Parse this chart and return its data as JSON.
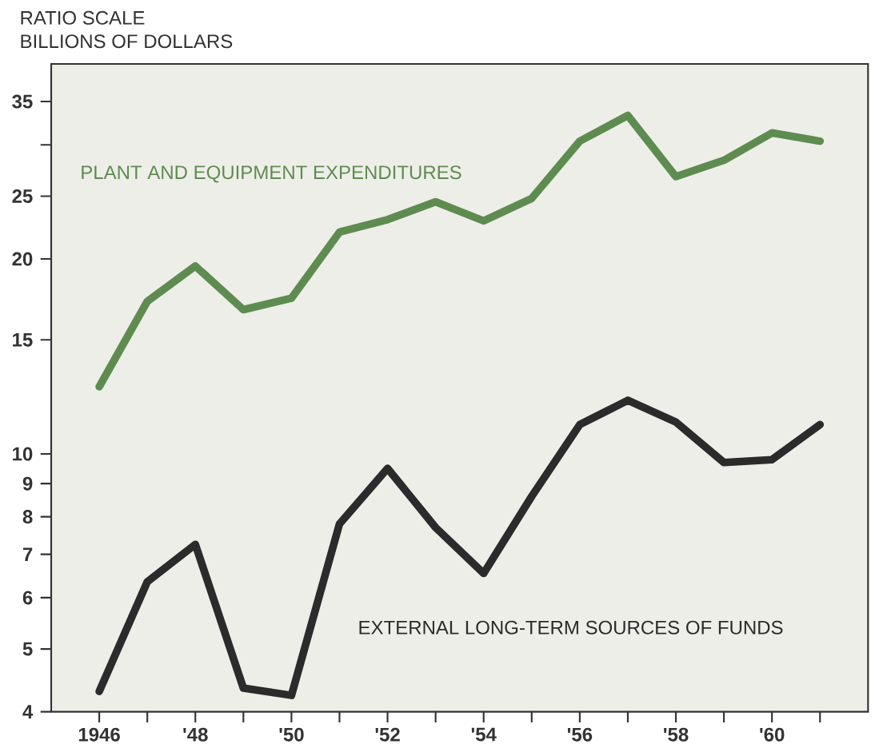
{
  "chart_data": {
    "type": "line",
    "title": "RATIO SCALE",
    "ylabel": "BILLIONS OF DOLLARS",
    "log": "y",
    "x": [
      1946,
      1947,
      1948,
      1949,
      1950,
      1951,
      1952,
      1953,
      1954,
      1955,
      1956,
      1957,
      1958,
      1959,
      1960,
      1961
    ],
    "series": [
      {
        "name": "PLANT AND EQUIPMENT EXPENDITURES",
        "color": "#5e8c50",
        "values": [
          12.7,
          17.2,
          19.5,
          16.7,
          17.4,
          22.0,
          23.0,
          24.5,
          22.9,
          24.8,
          30.4,
          33.3,
          26.8,
          28.4,
          31.3,
          30.4
        ]
      },
      {
        "name": "EXTERNAL LONG-TERM SOURCES OF FUNDS",
        "color": "#2b2b2b",
        "values": [
          4.3,
          6.35,
          7.25,
          4.35,
          4.24,
          7.8,
          9.5,
          7.7,
          6.54,
          8.6,
          11.1,
          12.1,
          11.2,
          9.7,
          9.8,
          11.1
        ]
      }
    ],
    "xlim": [
      1945,
      1962
    ],
    "ylim": [
      4,
      40
    ],
    "xticks": [
      {
        "value": 1946,
        "label": "1946"
      },
      {
        "value": 1947,
        "label": null
      },
      {
        "value": 1948,
        "label": "'48"
      },
      {
        "value": 1949,
        "label": null
      },
      {
        "value": 1950,
        "label": "'50"
      },
      {
        "value": 1951,
        "label": null
      },
      {
        "value": 1952,
        "label": "'52"
      },
      {
        "value": 1953,
        "label": null
      },
      {
        "value": 1954,
        "label": "'54"
      },
      {
        "value": 1955,
        "label": null
      },
      {
        "value": 1956,
        "label": "'56"
      },
      {
        "value": 1957,
        "label": null
      },
      {
        "value": 1958,
        "label": "'58"
      },
      {
        "value": 1959,
        "label": null
      },
      {
        "value": 1960,
        "label": "'60"
      },
      {
        "value": 1961,
        "label": null
      }
    ],
    "yticks": [
      4,
      5,
      6,
      7,
      8,
      9,
      10,
      15,
      20,
      25,
      {
        "value": 30,
        "label": null
      },
      35
    ]
  }
}
